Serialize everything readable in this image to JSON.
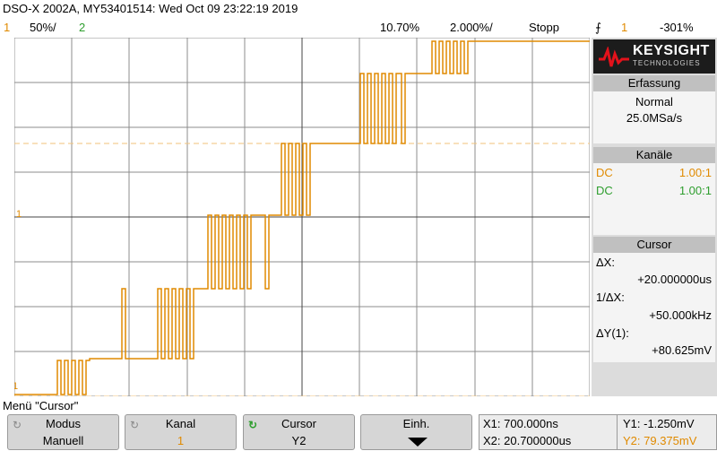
{
  "header": {
    "title": "DSO-X 2002A, MY53401514: Wed Oct 09 23:22:19 2019",
    "ch1_num": "1",
    "ch1_scale": "50%/",
    "ch2_num": "2",
    "time_pos": "10.70%",
    "time_scale": "2.000%/",
    "run_state": "Stopp",
    "trig_ch": "1",
    "trig_level": "-301%"
  },
  "logo": {
    "brand": "KEYSIGHT",
    "sub": "TECHNOLOGIES"
  },
  "acquisition": {
    "header": "Erfassung",
    "mode": "Normal",
    "rate": "25.0MSa/s"
  },
  "channels": {
    "header": "Kanäle",
    "ch1_coupling": "DC",
    "ch1_probe": "1.00:1",
    "ch2_coupling": "DC",
    "ch2_probe": "1.00:1"
  },
  "cursor": {
    "header": "Cursor",
    "dx_label": "ΔX:",
    "dx_value": "+20.000000us",
    "inv_dx_label": "1/ΔX:",
    "inv_dx_value": "+50.000kHz",
    "dy_label": "ΔY(1):",
    "dy_value": "+80.625mV"
  },
  "menu": {
    "label": "Menü \"Cursor\""
  },
  "softkeys": {
    "modus_top": "Modus",
    "modus_bottom": "Manuell",
    "kanal_top": "Kanal",
    "kanal_bottom": "1",
    "cursor_top": "Cursor",
    "cursor_bottom": "Y2",
    "einh_top": "Einh."
  },
  "cursor_values": {
    "x1": "X1: 700.000ns",
    "x2": "X2: 20.700000us",
    "y1": "Y1: -1.250mV",
    "y2": "Y2: 79.375mV"
  },
  "colors": {
    "ch1": "#e08a00",
    "ch2": "#2e9e2e",
    "cursor": "#f0c27a"
  }
}
